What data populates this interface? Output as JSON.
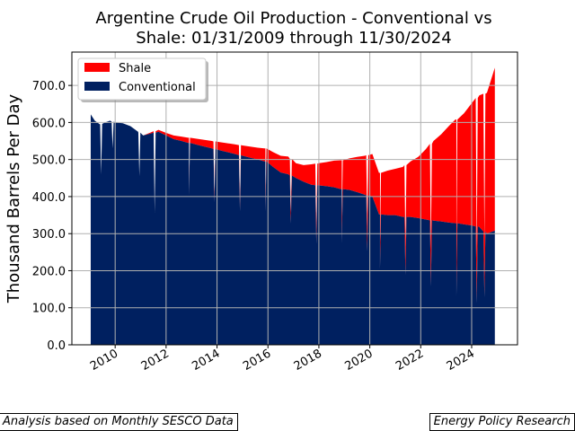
{
  "chart_data": {
    "type": "area",
    "stacked": true,
    "title_lines": [
      "Argentine Crude Oil Production - Conventional vs",
      "Shale: 01/31/2009 through 11/30/2024"
    ],
    "xlabel": "",
    "ylabel": "Thousand Barrels Per Day",
    "xlim": [
      2008.3,
      2025.8
    ],
    "ylim": [
      0,
      790
    ],
    "x_ticks": [
      2010,
      2012,
      2014,
      2016,
      2018,
      2020,
      2022,
      2024
    ],
    "x_tick_labels": [
      "2010",
      "2012",
      "2014",
      "2016",
      "2018",
      "2020",
      "2022",
      "2024"
    ],
    "y_ticks": [
      0,
      100,
      200,
      300,
      400,
      500,
      600,
      700
    ],
    "y_tick_labels": [
      "0.0",
      "100.0",
      "200.0",
      "300.0",
      "400.0",
      "500.0",
      "600.0",
      "700.0"
    ],
    "grid": true,
    "legend_position": "top-left",
    "x": [
      2009.04,
      2009.2,
      2009.4,
      2009.6,
      2009.8,
      2010.0,
      2010.3,
      2010.6,
      2010.9,
      2011.1,
      2011.4,
      2011.7,
      2012.0,
      2012.3,
      2012.6,
      2012.9,
      2013.2,
      2013.5,
      2013.8,
      2014.1,
      2014.4,
      2014.7,
      2015.0,
      2015.3,
      2015.6,
      2015.9,
      2016.2,
      2016.5,
      2016.8,
      2017.1,
      2017.4,
      2017.7,
      2018.0,
      2018.3,
      2018.6,
      2018.9,
      2019.2,
      2019.5,
      2019.8,
      2020.1,
      2020.4,
      2020.7,
      2021.0,
      2021.3,
      2021.6,
      2021.9,
      2022.2,
      2022.5,
      2022.8,
      2023.1,
      2023.4,
      2023.7,
      2024.0,
      2024.3,
      2024.6,
      2024.91
    ],
    "series": [
      {
        "name": "Conventional",
        "color": "#002060",
        "values": [
          622,
          605,
          595,
          600,
          605,
          600,
          598,
          590,
          575,
          565,
          570,
          575,
          565,
          555,
          550,
          545,
          540,
          535,
          530,
          525,
          520,
          515,
          510,
          505,
          500,
          495,
          480,
          465,
          460,
          450,
          440,
          432,
          430,
          428,
          425,
          420,
          418,
          412,
          405,
          400,
          352,
          350,
          350,
          345,
          345,
          342,
          338,
          335,
          333,
          330,
          328,
          325,
          322,
          318,
          300,
          308
        ]
      },
      {
        "name": "Shale",
        "color": "#ff0000",
        "values": [
          0,
          0,
          0,
          0,
          0,
          0,
          0,
          0,
          0,
          0,
          3,
          5,
          7,
          10,
          12,
          14,
          16,
          18,
          20,
          22,
          24,
          26,
          28,
          30,
          32,
          35,
          40,
          45,
          48,
          40,
          45,
          55,
          60,
          65,
          72,
          78,
          85,
          95,
          105,
          115,
          112,
          120,
          125,
          135,
          150,
          165,
          190,
          215,
          235,
          260,
          280,
          300,
          330,
          355,
          380,
          440
        ]
      }
    ],
    "dips": [
      {
        "x": 2009.45,
        "total": 460
      },
      {
        "x": 2009.9,
        "total": 530
      },
      {
        "x": 2010.95,
        "total": 455
      },
      {
        "x": 2011.55,
        "total": 360
      },
      {
        "x": 2012.9,
        "total": 415
      },
      {
        "x": 2013.9,
        "total": 400
      },
      {
        "x": 2014.9,
        "total": 380
      },
      {
        "x": 2015.9,
        "total": 385
      },
      {
        "x": 2016.9,
        "total": 360
      },
      {
        "x": 2017.9,
        "total": 310
      },
      {
        "x": 2018.9,
        "total": 325
      },
      {
        "x": 2019.9,
        "total": 320
      },
      {
        "x": 2020.4,
        "total": 270
      },
      {
        "x": 2021.4,
        "total": 265
      },
      {
        "x": 2022.4,
        "total": 255
      },
      {
        "x": 2023.4,
        "total": 245
      },
      {
        "x": 2024.2,
        "total": 235
      },
      {
        "x": 2024.5,
        "total": 285
      }
    ]
  },
  "footer": {
    "left": "Analysis based on Monthly SESCO Data",
    "right": "Energy Policy Research"
  }
}
